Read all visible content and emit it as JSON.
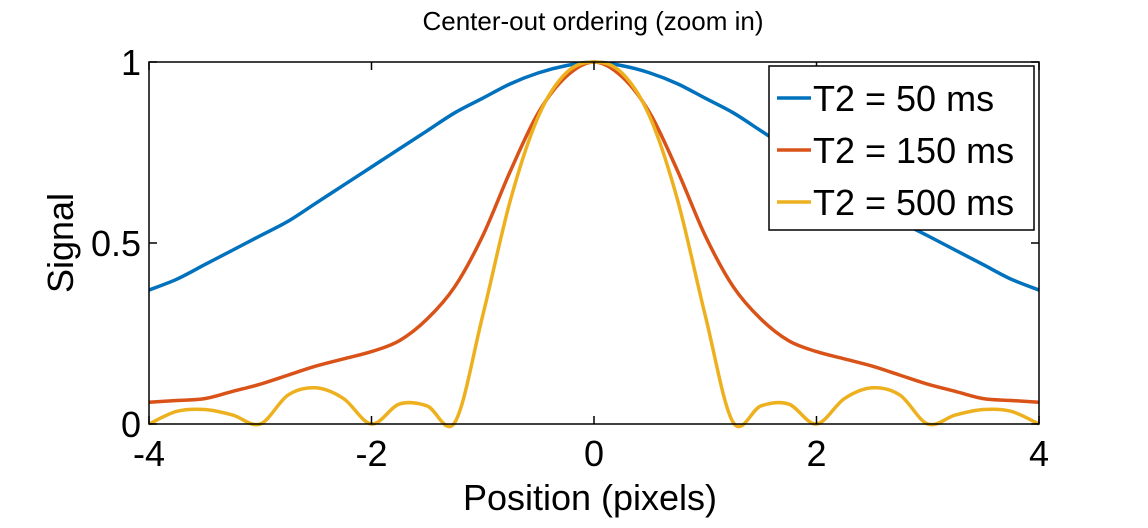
{
  "chart_data": {
    "type": "line",
    "title": "Center-out ordering (zoom in)",
    "xlabel": "Position (pixels)",
    "ylabel": "Signal",
    "xlim": [
      -4,
      4
    ],
    "ylim": [
      0,
      1
    ],
    "xticks": [
      -4,
      -2,
      0,
      2,
      4
    ],
    "yticks": [
      0,
      0.5,
      1
    ],
    "xtick_labels": [
      "-4",
      "-2",
      "0",
      "2",
      "4"
    ],
    "ytick_labels": [
      "0",
      "0.5",
      "1"
    ],
    "grid": false,
    "legend_position": "top-right",
    "x": [
      -4.0,
      -3.75,
      -3.5,
      -3.25,
      -3.0,
      -2.75,
      -2.5,
      -2.25,
      -2.0,
      -1.75,
      -1.5,
      -1.25,
      -1.0,
      -0.75,
      -0.5,
      -0.25,
      0.0,
      0.25,
      0.5,
      0.75,
      1.0,
      1.25,
      1.5,
      1.75,
      2.0,
      2.25,
      2.5,
      2.75,
      3.0,
      3.25,
      3.5,
      3.75,
      4.0
    ],
    "series": [
      {
        "name": "T2 = 50 ms",
        "color": "#0072BD",
        "values": [
          0.37,
          0.4,
          0.44,
          0.48,
          0.52,
          0.56,
          0.61,
          0.66,
          0.71,
          0.76,
          0.81,
          0.86,
          0.9,
          0.94,
          0.97,
          0.99,
          1.0,
          0.99,
          0.97,
          0.94,
          0.9,
          0.86,
          0.81,
          0.76,
          0.71,
          0.66,
          0.61,
          0.56,
          0.52,
          0.48,
          0.44,
          0.4,
          0.37
        ]
      },
      {
        "name": "T2 = 150 ms",
        "color": "#D95319",
        "values": [
          0.06,
          0.065,
          0.07,
          0.09,
          0.11,
          0.135,
          0.16,
          0.18,
          0.2,
          0.23,
          0.29,
          0.38,
          0.52,
          0.7,
          0.86,
          0.96,
          1.0,
          0.96,
          0.86,
          0.7,
          0.52,
          0.38,
          0.29,
          0.23,
          0.2,
          0.18,
          0.16,
          0.135,
          0.11,
          0.09,
          0.07,
          0.065,
          0.06
        ]
      },
      {
        "name": "T2 = 500 ms",
        "color": "#EDB120",
        "values": [
          0.0,
          0.035,
          0.04,
          0.025,
          0.0,
          0.08,
          0.1,
          0.07,
          0.0,
          0.055,
          0.05,
          0.005,
          0.3,
          0.62,
          0.85,
          0.97,
          1.0,
          0.97,
          0.85,
          0.62,
          0.3,
          0.005,
          0.05,
          0.055,
          0.0,
          0.07,
          0.1,
          0.08,
          0.0,
          0.025,
          0.04,
          0.035,
          0.0
        ]
      }
    ]
  }
}
